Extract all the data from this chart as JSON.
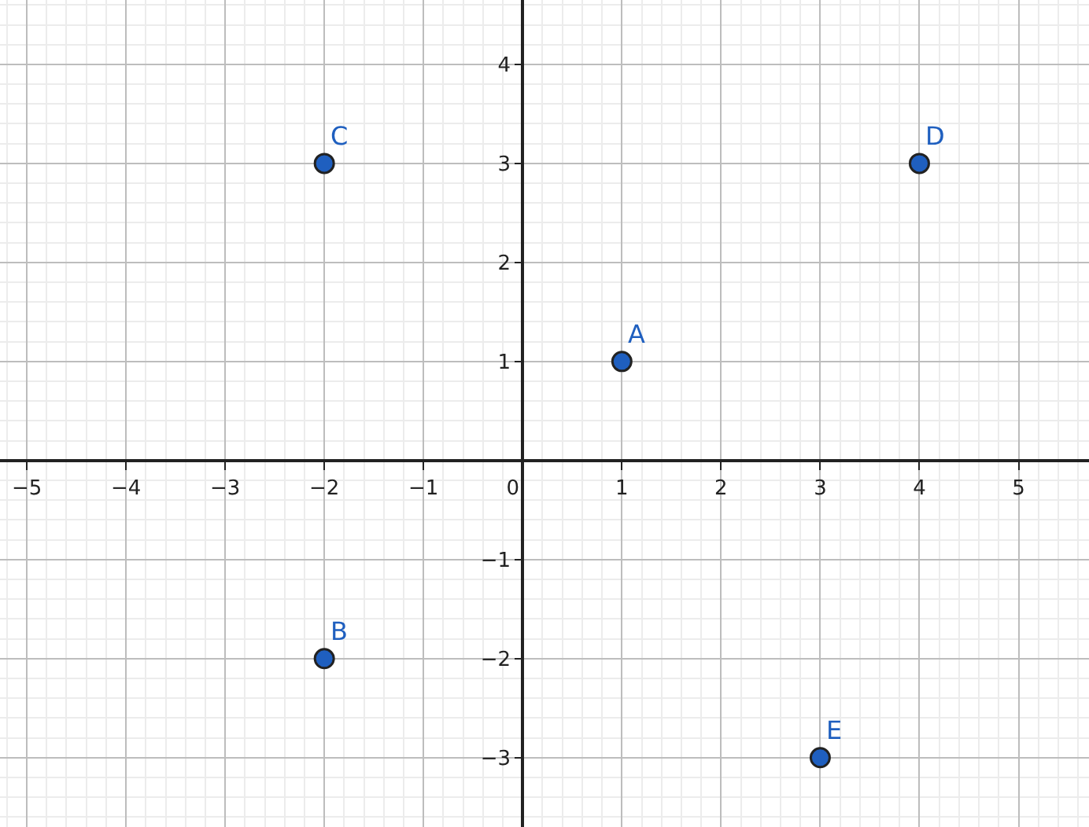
{
  "chart_data": {
    "type": "scatter",
    "x": [
      1,
      -2,
      -2,
      4,
      3
    ],
    "values": [
      1,
      -2,
      3,
      3,
      -3
    ],
    "color": "#1f5fbf",
    "marker": "circle",
    "xlim": [
      -5.27,
      5.71
    ],
    "ylim": [
      -3.7,
      4.65
    ],
    "xticks": [
      -5,
      -4,
      -3,
      -2,
      -1,
      0,
      1,
      2,
      3,
      4,
      5
    ],
    "yticks": [
      -3,
      -2,
      -1,
      1,
      2,
      3,
      4
    ],
    "grid": true,
    "legend": false,
    "annotations": [
      {
        "text": "A",
        "x": 1,
        "y": 1
      },
      {
        "text": "B",
        "x": -2,
        "y": -2
      },
      {
        "text": "C",
        "x": -2,
        "y": 3
      },
      {
        "text": "D",
        "x": 4,
        "y": 3
      },
      {
        "text": "E",
        "x": 3,
        "y": -3
      }
    ]
  }
}
